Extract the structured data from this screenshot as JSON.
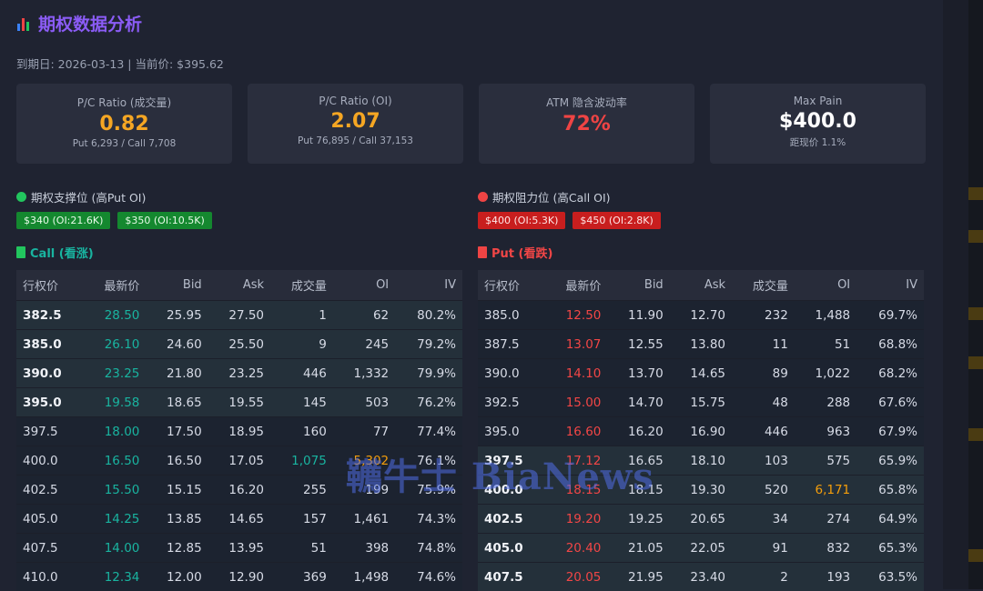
{
  "header": {
    "title": "期权数据分析",
    "expiry_line": "到期日: 2026-03-13 | 当前价: $395.62"
  },
  "cards": [
    {
      "label": "P/C Ratio (成交量)",
      "value": "0.82",
      "sub": "Put 6,293 / Call 7,708",
      "color": "#f5a623"
    },
    {
      "label": "P/C Ratio (OI)",
      "value": "2.07",
      "sub": "Put 76,895 / Call 37,153",
      "color": "#f5a623"
    },
    {
      "label": "ATM 隐含波动率",
      "value": "72%",
      "sub": "",
      "color": "#ef4444"
    },
    {
      "label": "Max Pain",
      "value": "$400.0",
      "sub": "距现价 1.1%",
      "color": "#ffffff"
    }
  ],
  "support": {
    "title": "期权支撑位 (高Put OI)",
    "tags": [
      "$340 (OI:21.6K)",
      "$350 (OI:10.5K)"
    ]
  },
  "resistance": {
    "title": "期权阻力位 (高Call OI)",
    "tags": [
      "$400 (OI:5.3K)",
      "$450 (OI:2.8K)"
    ]
  },
  "columns": [
    "行权价",
    "最新价",
    "Bid",
    "Ask",
    "成交量",
    "OI",
    "IV"
  ],
  "call_table": {
    "title": "Call (看涨)",
    "rows": [
      {
        "strike": "382.5",
        "last": "28.50",
        "bid": "25.95",
        "ask": "27.50",
        "vol": "1",
        "oi": "62",
        "iv": "80.2%"
      },
      {
        "strike": "385.0",
        "last": "26.10",
        "bid": "24.60",
        "ask": "25.50",
        "vol": "9",
        "oi": "245",
        "iv": "79.2%"
      },
      {
        "strike": "390.0",
        "last": "23.25",
        "bid": "21.80",
        "ask": "23.25",
        "vol": "446",
        "oi": "1,332",
        "iv": "79.9%"
      },
      {
        "strike": "395.0",
        "last": "19.58",
        "bid": "18.65",
        "ask": "19.55",
        "vol": "145",
        "oi": "503",
        "iv": "76.2%"
      },
      {
        "strike": "397.5",
        "last": "18.00",
        "bid": "17.50",
        "ask": "18.95",
        "vol": "160",
        "oi": "77",
        "iv": "77.4%"
      },
      {
        "strike": "400.0",
        "last": "16.50",
        "bid": "16.50",
        "ask": "17.05",
        "vol": "1,075",
        "oi": "5,302",
        "iv": "76.1%"
      },
      {
        "strike": "402.5",
        "last": "15.50",
        "bid": "15.15",
        "ask": "16.20",
        "vol": "255",
        "oi": "199",
        "iv": "75.9%"
      },
      {
        "strike": "405.0",
        "last": "14.25",
        "bid": "13.85",
        "ask": "14.65",
        "vol": "157",
        "oi": "1,461",
        "iv": "74.3%"
      },
      {
        "strike": "407.5",
        "last": "14.00",
        "bid": "12.85",
        "ask": "13.95",
        "vol": "51",
        "oi": "398",
        "iv": "74.8%"
      },
      {
        "strike": "410.0",
        "last": "12.34",
        "bid": "12.00",
        "ask": "12.90",
        "vol": "369",
        "oi": "1,498",
        "iv": "74.6%"
      }
    ]
  },
  "put_table": {
    "title": "Put (看跌)",
    "rows": [
      {
        "strike": "385.0",
        "last": "12.50",
        "bid": "11.90",
        "ask": "12.70",
        "vol": "232",
        "oi": "1,488",
        "iv": "69.7%"
      },
      {
        "strike": "387.5",
        "last": "13.07",
        "bid": "12.55",
        "ask": "13.80",
        "vol": "11",
        "oi": "51",
        "iv": "68.8%"
      },
      {
        "strike": "390.0",
        "last": "14.10",
        "bid": "13.70",
        "ask": "14.65",
        "vol": "89",
        "oi": "1,022",
        "iv": "68.2%"
      },
      {
        "strike": "392.5",
        "last": "15.00",
        "bid": "14.70",
        "ask": "15.75",
        "vol": "48",
        "oi": "288",
        "iv": "67.6%"
      },
      {
        "strike": "395.0",
        "last": "16.60",
        "bid": "16.20",
        "ask": "16.90",
        "vol": "446",
        "oi": "963",
        "iv": "67.9%"
      },
      {
        "strike": "397.5",
        "last": "17.12",
        "bid": "16.65",
        "ask": "18.10",
        "vol": "103",
        "oi": "575",
        "iv": "65.9%"
      },
      {
        "strike": "400.0",
        "last": "18.15",
        "bid": "18.15",
        "ask": "19.30",
        "vol": "520",
        "oi": "6,171",
        "iv": "65.8%"
      },
      {
        "strike": "402.5",
        "last": "19.20",
        "bid": "19.25",
        "ask": "20.65",
        "vol": "34",
        "oi": "274",
        "iv": "64.9%"
      },
      {
        "strike": "405.0",
        "last": "20.40",
        "bid": "21.05",
        "ask": "22.05",
        "vol": "91",
        "oi": "832",
        "iv": "65.3%"
      },
      {
        "strike": "407.5",
        "last": "20.05",
        "bid": "21.95",
        "ask": "23.40",
        "vol": "2",
        "oi": "193",
        "iv": "63.5%"
      }
    ]
  },
  "watermark": "韉牛士 BiaNews",
  "colors": {
    "accent_purple": "#8b5cf6",
    "call_green": "#19b4a0",
    "put_red": "#f24646",
    "highlight_orange": "#f59e0b"
  }
}
